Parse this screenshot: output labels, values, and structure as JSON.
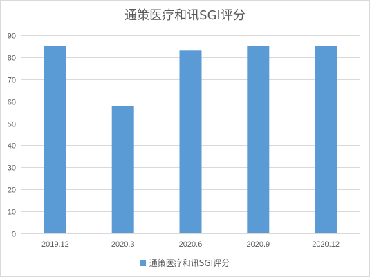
{
  "chart_data": {
    "type": "bar",
    "title": "通策医疗和讯SGI评分",
    "categories": [
      "2019.12",
      "2020.3",
      "2020.6",
      "2020.9",
      "2020.12"
    ],
    "series": [
      {
        "name": "通策医疗和讯SGI评分",
        "values": [
          85,
          58,
          83,
          85,
          85
        ]
      }
    ],
    "ylim": [
      0,
      90
    ],
    "yticks": [
      0,
      10,
      20,
      30,
      40,
      50,
      60,
      70,
      80,
      90
    ],
    "xlabel": "",
    "ylabel": "",
    "grid": true,
    "legend": "bottom",
    "colors": {
      "bar": "#5b9bd5",
      "grid": "#d9d9d9",
      "text": "#595959"
    }
  }
}
